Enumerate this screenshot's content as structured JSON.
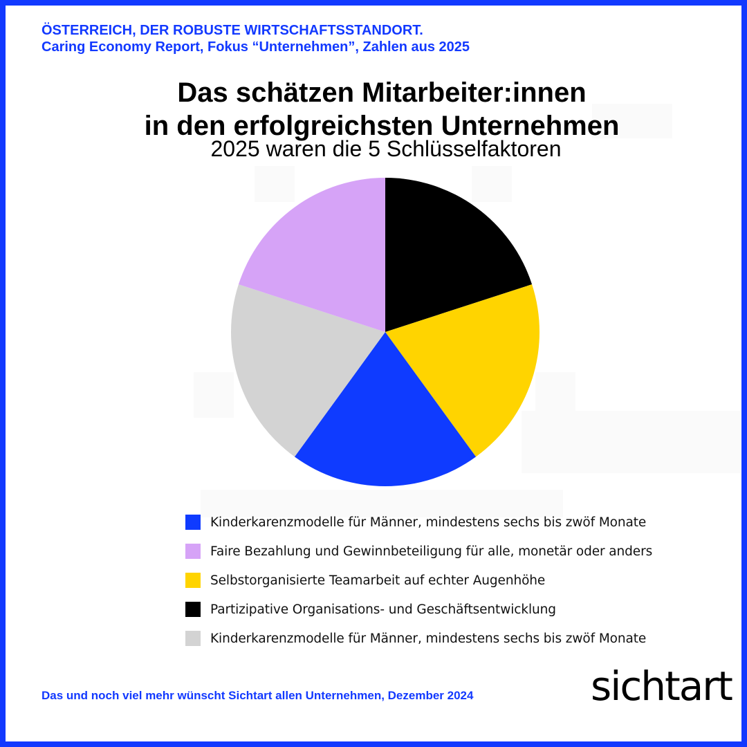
{
  "header": {
    "line1": "ÖSTERREICH, DER ROBUSTE WIRTSCHAFTSSTANDORT.",
    "line2": "Caring Economy Report, Fokus “Unternehmen”, Zahlen aus 2025"
  },
  "chart_data": {
    "type": "pie",
    "title_line1": "Das schätzen Mitarbeiter:innen",
    "title_line2": "in den erfolgreichsten Unternehmen",
    "subtitle": "2025 waren die 5 Schlüsselfaktoren",
    "slices": [
      {
        "key": "black",
        "value": 20,
        "color": "#000000"
      },
      {
        "key": "yellow",
        "value": 20,
        "color": "#ffd400"
      },
      {
        "key": "blue",
        "value": 20,
        "color": "#0f3bff"
      },
      {
        "key": "grey",
        "value": 20,
        "color": "#d3d3d3"
      },
      {
        "key": "violet",
        "value": 20,
        "color": "#d6a3f7"
      }
    ],
    "legend": [
      {
        "label": "Kinderkarenzmodelle für Männer, mindestens sechs bis zwöf Monate",
        "color": "#0f3bff"
      },
      {
        "label": "Faire Bezahlung und Gewinnbeteiligung für alle, monetär oder anders",
        "color": "#d6a3f7"
      },
      {
        "label": "Selbstorganisierte Teamarbeit auf echter Augenhöhe",
        "color": "#ffd400"
      },
      {
        "label": "Partizipative Organisations- und Geschäftsentwicklung",
        "color": "#000000"
      },
      {
        "label": "Kinderkarenzmodelle für Männer, mindestens sechs bis zwöf Monate",
        "color": "#d3d3d3"
      }
    ],
    "legend_placement": "bottom"
  },
  "footer": {
    "text": "Das und noch viel mehr wünscht Sichtart allen Unternehmen, Dezember 2024"
  },
  "logo": {
    "text": "sichtart"
  },
  "colors": {
    "accent": "#1239ff"
  }
}
